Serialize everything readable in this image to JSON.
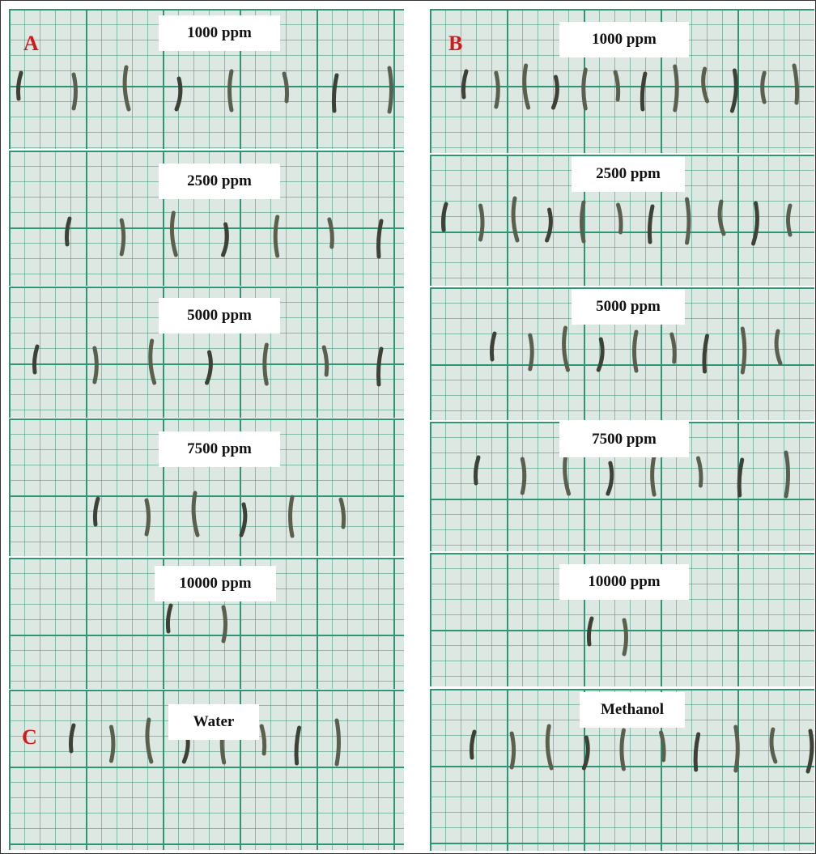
{
  "panel_letters": [
    "A",
    "B",
    "C"
  ],
  "left_column": {
    "labels": [
      "1000 ppm",
      "2500 ppm",
      "5000 ppm",
      "7500 ppm",
      "10000 ppm",
      "Water"
    ]
  },
  "right_column": {
    "labels": [
      "1000 ppm",
      "2500 ppm",
      "5000 ppm",
      "7500 ppm",
      "10000 ppm",
      "Methanol"
    ]
  }
}
